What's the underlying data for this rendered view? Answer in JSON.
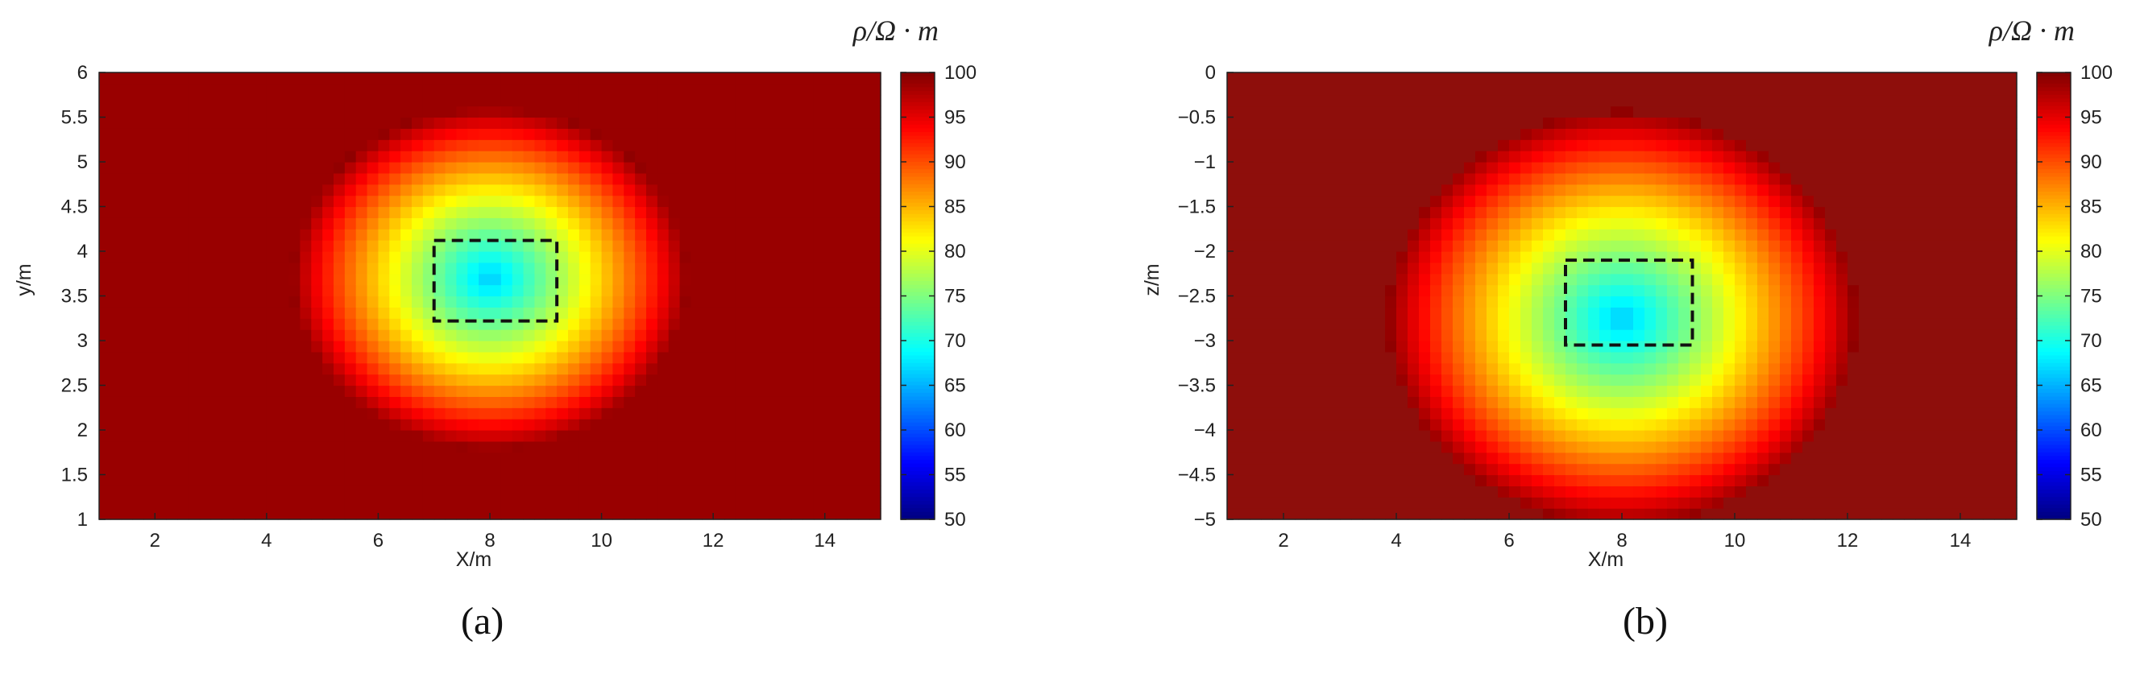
{
  "figure": {
    "panel_labels": [
      "(a)",
      "(b)"
    ]
  },
  "chart_data": [
    {
      "type": "heatmap",
      "panel": "a",
      "xlabel": "X/m",
      "ylabel": "y/m",
      "xlim": [
        1,
        15
      ],
      "ylim": [
        1,
        6
      ],
      "xticks": [
        2,
        4,
        6,
        8,
        10,
        12,
        14
      ],
      "yticks": [
        1,
        1.5,
        2,
        2.5,
        3,
        3.5,
        4,
        4.5,
        5,
        5.5,
        6
      ],
      "colorbar": {
        "title": "ρ/Ω · m",
        "range": [
          50,
          100
        ],
        "ticks": [
          50,
          55,
          60,
          65,
          70,
          75,
          80,
          85,
          90,
          95,
          100
        ],
        "colormap": "jet"
      },
      "background_value": 100,
      "anomaly": {
        "center": [
          8.0,
          3.7
        ],
        "min_value": 66,
        "radius_x": 3.6,
        "radius_y": 1.95
      },
      "target_box": {
        "x": [
          7.0,
          9.2
        ],
        "y": [
          3.22,
          4.12
        ]
      }
    },
    {
      "type": "heatmap",
      "panel": "b",
      "xlabel": "X/m",
      "ylabel": "z/m",
      "xlim": [
        1,
        15
      ],
      "ylim": [
        -5,
        0
      ],
      "xticks": [
        2,
        4,
        6,
        8,
        10,
        12,
        14
      ],
      "yticks": [
        -5,
        -4.5,
        -4,
        -3.5,
        -3,
        -2.5,
        -2,
        -1.5,
        -1,
        -0.5,
        0
      ],
      "colorbar": {
        "title": "ρ/Ω · m",
        "range": [
          50,
          100
        ],
        "ticks": [
          50,
          55,
          60,
          65,
          70,
          75,
          80,
          85,
          90,
          95,
          100
        ],
        "colormap": "jet"
      },
      "background_value": 100,
      "anomaly": {
        "center": [
          8.0,
          -2.75
        ],
        "min_value": 66,
        "radius_x": 4.2,
        "radius_y": 2.35
      },
      "target_box": {
        "x": [
          7.0,
          9.25
        ],
        "y": [
          -3.05,
          -2.1
        ]
      }
    }
  ]
}
